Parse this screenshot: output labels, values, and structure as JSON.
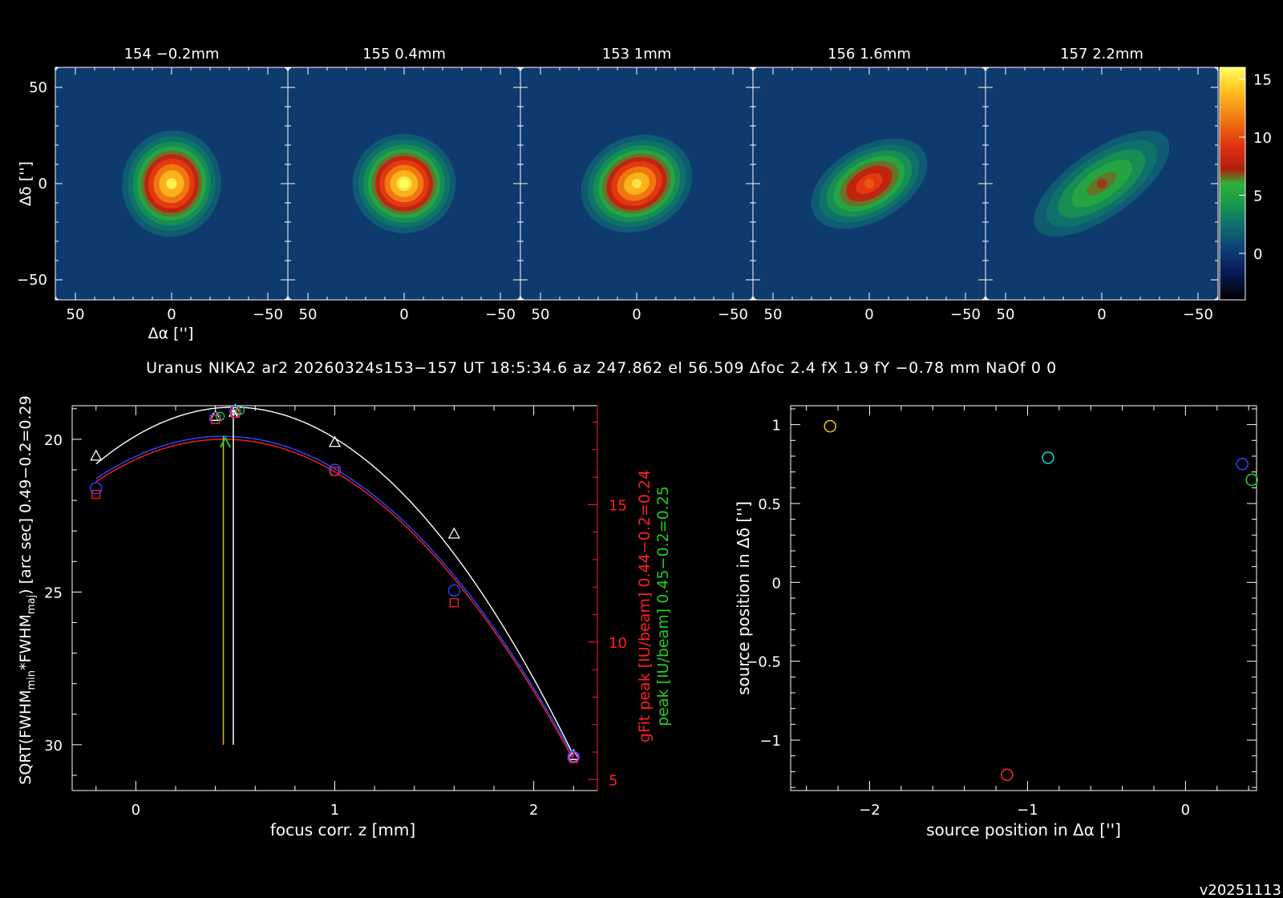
{
  "maps": {
    "panels": [
      {
        "title": "154 −0.2mm",
        "peak": 15.6,
        "cx": 0,
        "cy": 0,
        "sx": 12,
        "sy": 13,
        "rot": 10
      },
      {
        "title": "155 0.4mm",
        "peak": 16.0,
        "cx": 0,
        "cy": 0,
        "sx": 12.5,
        "sy": 12,
        "rot": 0
      },
      {
        "title": "153 1mm",
        "peak": 15.2,
        "cx": 0,
        "cy": 0,
        "sx": 14,
        "sy": 11.5,
        "rot": -25
      },
      {
        "title": "156 1.6mm",
        "peak": 10.5,
        "cx": 0,
        "cy": 0,
        "sx": 17,
        "sy": 10,
        "rot": -30
      },
      {
        "title": "157 2.2mm",
        "peak": 7.0,
        "cx": 0,
        "cy": 0,
        "sx": 24,
        "sy": 10,
        "rot": -35
      }
    ],
    "x_ticks": [
      "50",
      "0",
      "−50"
    ],
    "y_ticks": [
      "50",
      "0",
      "−50"
    ],
    "xlabel": "Δα ['']",
    "ylabel": "Δδ ['']",
    "colorbar_ticks": [
      "15",
      "10",
      "5",
      "0"
    ],
    "colorbar_range": [
      -4,
      16
    ]
  },
  "info_line": "Uranus NIKA2 ar2 20260324s153−157 UT 18:5:34.6 az 247.862 el 56.509 Δfoc 2.4 fX 1.9 fY −0.78 mm NaOf 0 0",
  "version": "v20251113",
  "colors": {
    "red": "#ff2020",
    "green": "#22cc22",
    "blue": "#2a3cff",
    "cyan": "#10d0d0",
    "yellow": "#e0c000",
    "white": "#ffffff",
    "gray": "#cccccc"
  },
  "chart_data": [
    {
      "type": "scatter",
      "title": "",
      "xlabel": "focus corr. z [mm]",
      "ylabel_left": "SQRT(FWHM",
      "ylabel_left_sub1": "min",
      "ylabel_left_mid": "*FWHM",
      "ylabel_left_sub2": "maj",
      "ylabel_left_end": ") [arc sec] 0.49−0.2=0.29",
      "ylabel_right_red": "gFit peak [IU/beam] 0.44−0.2=0.24",
      "ylabel_right_green": "peak [IU/beam] 0.45−0.2=0.25",
      "xlim": [
        -0.32,
        2.32
      ],
      "ylim_left": [
        18.9,
        31.5
      ],
      "ylim_right": [
        4.6,
        18.6
      ],
      "x_ticks": [
        "0",
        "1",
        "2"
      ],
      "y_ticks_left": [
        "20",
        "25",
        "30"
      ],
      "y_ticks_right": [
        "15",
        "10",
        "5"
      ],
      "focus": [
        -0.2,
        0.4,
        0.5,
        1.0,
        1.6,
        2.2
      ],
      "fwhm_white_triangles": [
        20.55,
        19.25,
        19.05,
        20.1,
        23.1,
        30.35
      ],
      "fwhm_blue_circles": [
        21.6,
        19.3,
        19.1,
        21.0,
        24.95,
        30.4
      ],
      "fwhm_red_squares": [
        21.8,
        19.35,
        19.15,
        21.05,
        25.35,
        30.45
      ],
      "peak_green": [
        15.7,
        17.9,
        17.8,
        15.2,
        11.2,
        5.8
      ],
      "fit_white": {
        "z0": 0.49,
        "ymin": 18.95
      },
      "fit_blue": {
        "z0": 0.44,
        "ymin": 19.9
      },
      "fit_red": {
        "z0": 0.44,
        "ymin": 20.0
      },
      "arrow_yellow_x": 0.44,
      "arrow_green_x": 0.45,
      "line_white_x": 0.49
    },
    {
      "type": "scatter",
      "title": "",
      "xlabel": "source position in Δα ['']",
      "ylabel": "source position in Δδ ['']",
      "xlim": [
        -2.5,
        0.45
      ],
      "ylim": [
        -1.32,
        1.12
      ],
      "x_ticks": [
        "−2",
        "−1",
        "0"
      ],
      "y_ticks": [
        "1",
        "0.5",
        "0",
        "−0.5",
        "−1"
      ],
      "points": [
        {
          "x": -2.25,
          "y": 0.99,
          "color": "yellow"
        },
        {
          "x": -0.87,
          "y": 0.79,
          "color": "cyan"
        },
        {
          "x": -1.13,
          "y": -1.22,
          "color": "red"
        },
        {
          "x": 0.36,
          "y": 0.75,
          "color": "blue"
        },
        {
          "x": 0.42,
          "y": 0.65,
          "color": "green"
        }
      ]
    }
  ]
}
